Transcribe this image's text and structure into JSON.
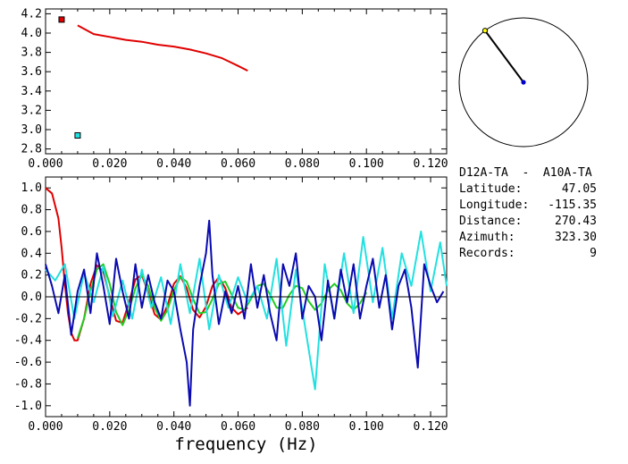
{
  "station_pair": "D12A-TA  -  A10A-TA",
  "info_rows": [
    {
      "label": "Latitude:",
      "value": "47.05"
    },
    {
      "label": "Longitude:",
      "value": "-115.35"
    },
    {
      "label": "Distance:",
      "value": "270.43"
    },
    {
      "label": "Azimuth:",
      "value": "323.30"
    },
    {
      "label": "Records:",
      "value": "9"
    }
  ],
  "azimuth_deg": 323.3,
  "colors": {
    "red": "#e00000",
    "green": "#22cc22",
    "cyan": "#22e0e0",
    "blue": "#0a0ab0",
    "azimuth_line": "#000000",
    "azimuth_end": "#ffff00",
    "azimuth_center": "#0000cc"
  },
  "chart_data": [
    {
      "type": "scatter",
      "xlabel": "",
      "ylabel": "",
      "xlim": [
        0.0,
        0.125
      ],
      "ylim": [
        2.75,
        4.25
      ],
      "x_ticks": [
        "0.000",
        "0.020",
        "0.040",
        "0.060",
        "0.080",
        "0.100",
        "0.120"
      ],
      "y_ticks": [
        "2.8",
        "3.0",
        "3.2",
        "3.4",
        "3.6",
        "3.8",
        "4.0",
        "4.2"
      ],
      "markers": [
        {
          "x": 0.005,
          "y": 4.14,
          "color": "#e00000"
        },
        {
          "x": 0.01,
          "y": 2.94,
          "color": "#22e0e0"
        }
      ],
      "series": [
        {
          "color": "#e00000",
          "x": [
            0.01,
            0.015,
            0.02,
            0.025,
            0.03,
            0.035,
            0.04,
            0.045,
            0.05,
            0.055,
            0.06,
            0.063
          ],
          "y": [
            4.08,
            3.99,
            3.96,
            3.93,
            3.91,
            3.88,
            3.86,
            3.83,
            3.79,
            3.74,
            3.66,
            3.61
          ]
        }
      ]
    },
    {
      "type": "line",
      "xlabel": "frequency (Hz)",
      "ylabel": "",
      "xlim": [
        0.0,
        0.125
      ],
      "ylim": [
        -1.1,
        1.1
      ],
      "x_ticks": [
        "0.000",
        "0.020",
        "0.040",
        "0.060",
        "0.080",
        "0.100",
        "0.120"
      ],
      "y_ticks": [
        "1.0",
        "0.8",
        "0.6",
        "0.4",
        "0.2",
        "0.0",
        "-0.2",
        "-0.4",
        "-0.6",
        "-0.8",
        "-1.0"
      ],
      "series": [
        {
          "color": "#e00000",
          "x": [
            0.0,
            0.002,
            0.004,
            0.005,
            0.006,
            0.007,
            0.008,
            0.009,
            0.01,
            0.012,
            0.014,
            0.016,
            0.018,
            0.02,
            0.022,
            0.024,
            0.026,
            0.028,
            0.03,
            0.032,
            0.034,
            0.036,
            0.038,
            0.04,
            0.042,
            0.044,
            0.046,
            0.048,
            0.05,
            0.052,
            0.054,
            0.056,
            0.058,
            0.06,
            0.062,
            0.063
          ],
          "y": [
            1.0,
            0.95,
            0.72,
            0.45,
            0.12,
            -0.15,
            -0.33,
            -0.4,
            -0.4,
            -0.2,
            0.12,
            0.29,
            0.23,
            0.0,
            -0.22,
            -0.24,
            -0.05,
            0.16,
            0.2,
            0.04,
            -0.16,
            -0.21,
            -0.08,
            0.12,
            0.19,
            0.08,
            -0.12,
            -0.19,
            -0.09,
            0.1,
            0.18,
            0.08,
            -0.1,
            -0.16,
            -0.12,
            -0.1
          ]
        },
        {
          "color": "#22cc22",
          "x": [
            0.01,
            0.012,
            0.014,
            0.016,
            0.018,
            0.02,
            0.022,
            0.024,
            0.026,
            0.028,
            0.03,
            0.032,
            0.034,
            0.036,
            0.038,
            0.04,
            0.042,
            0.044,
            0.046,
            0.048,
            0.05,
            0.052,
            0.054,
            0.056,
            0.058,
            0.06,
            0.062,
            0.064,
            0.066,
            0.068,
            0.07,
            0.072,
            0.074,
            0.076,
            0.078,
            0.08,
            0.082,
            0.084,
            0.086,
            0.088,
            0.09,
            0.092,
            0.094,
            0.096,
            0.098,
            0.1
          ],
          "y": [
            -0.38,
            -0.2,
            0.05,
            0.25,
            0.3,
            0.12,
            -0.14,
            -0.26,
            -0.12,
            0.08,
            0.2,
            0.1,
            -0.1,
            -0.22,
            -0.12,
            0.06,
            0.18,
            0.14,
            -0.02,
            -0.15,
            -0.14,
            -0.02,
            0.12,
            0.14,
            0.02,
            -0.1,
            -0.12,
            -0.02,
            0.1,
            0.12,
            0.02,
            -0.1,
            -0.1,
            0.02,
            0.1,
            0.08,
            -0.04,
            -0.12,
            -0.06,
            0.06,
            0.12,
            0.06,
            -0.06,
            -0.12,
            -0.06,
            0.04
          ]
        },
        {
          "color": "#22e0e0",
          "x": [
            0.0,
            0.003,
            0.006,
            0.009,
            0.012,
            0.015,
            0.018,
            0.021,
            0.024,
            0.027,
            0.03,
            0.033,
            0.036,
            0.039,
            0.042,
            0.045,
            0.048,
            0.051,
            0.054,
            0.057,
            0.06,
            0.063,
            0.066,
            0.069,
            0.072,
            0.075,
            0.078,
            0.081,
            0.084,
            0.087,
            0.09,
            0.093,
            0.096,
            0.099,
            0.102,
            0.105,
            0.108,
            0.111,
            0.114,
            0.117,
            0.12,
            0.123,
            0.125
          ],
          "y": [
            0.25,
            0.15,
            0.3,
            -0.2,
            0.22,
            -0.05,
            0.28,
            -0.18,
            0.15,
            -0.2,
            0.25,
            -0.1,
            0.18,
            -0.25,
            0.3,
            -0.15,
            0.35,
            -0.3,
            0.2,
            -0.1,
            0.18,
            -0.05,
            0.1,
            -0.2,
            0.35,
            -0.45,
            0.25,
            -0.3,
            -0.85,
            0.3,
            -0.2,
            0.4,
            -0.15,
            0.55,
            -0.05,
            0.45,
            -0.2,
            0.4,
            0.1,
            0.6,
            0.05,
            0.5,
            0.1
          ]
        },
        {
          "color": "#0a0ab0",
          "x": [
            0.0,
            0.002,
            0.004,
            0.006,
            0.008,
            0.01,
            0.012,
            0.014,
            0.016,
            0.018,
            0.02,
            0.022,
            0.024,
            0.026,
            0.028,
            0.03,
            0.032,
            0.034,
            0.036,
            0.038,
            0.04,
            0.042,
            0.044,
            0.045,
            0.046,
            0.048,
            0.05,
            0.051,
            0.052,
            0.054,
            0.056,
            0.058,
            0.06,
            0.062,
            0.064,
            0.066,
            0.068,
            0.07,
            0.072,
            0.074,
            0.076,
            0.078,
            0.08,
            0.082,
            0.084,
            0.086,
            0.088,
            0.09,
            0.092,
            0.094,
            0.096,
            0.098,
            0.1,
            0.102,
            0.104,
            0.106,
            0.108,
            0.11,
            0.112,
            0.114,
            0.116,
            0.118,
            0.12,
            0.122,
            0.124
          ],
          "y": [
            0.3,
            0.1,
            -0.15,
            0.2,
            -0.35,
            0.05,
            0.25,
            -0.15,
            0.4,
            0.1,
            -0.25,
            0.35,
            0.05,
            -0.2,
            0.3,
            -0.1,
            0.2,
            -0.05,
            -0.2,
            0.15,
            0.05,
            -0.3,
            -0.6,
            -1.0,
            -0.3,
            0.1,
            0.4,
            0.7,
            0.2,
            -0.25,
            0.05,
            -0.15,
            0.1,
            -0.2,
            0.3,
            -0.1,
            0.2,
            -0.15,
            -0.4,
            0.3,
            0.1,
            0.4,
            -0.2,
            0.1,
            0.0,
            -0.4,
            0.15,
            -0.2,
            0.25,
            -0.05,
            0.3,
            -0.2,
            0.1,
            0.35,
            -0.1,
            0.2,
            -0.3,
            0.1,
            0.25,
            -0.1,
            -0.65,
            0.3,
            0.1,
            -0.05,
            0.05
          ]
        }
      ]
    }
  ]
}
